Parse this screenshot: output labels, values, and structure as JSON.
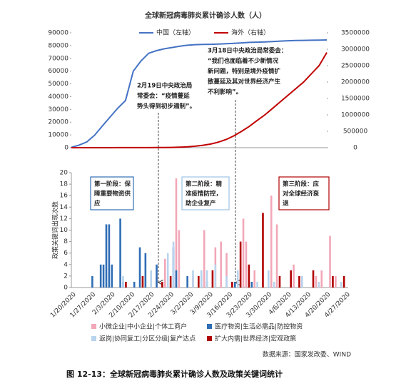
{
  "chart_data": [
    {
      "type": "line",
      "title": "全球新冠病毒肺炎累计确诊人数（人）",
      "categories": [
        null,
        null,
        null,
        null,
        null,
        null,
        null,
        null,
        null,
        null,
        null,
        null,
        null,
        null,
        null,
        null,
        null,
        null,
        null,
        null,
        null,
        null,
        null,
        null,
        null,
        null,
        null,
        null,
        null,
        null,
        null,
        null,
        null,
        null
      ],
      "series": [
        {
          "name": "中国（左轴）",
          "color": "#4472c4",
          "values": [
            300,
            2000,
            4500,
            9700,
            17000,
            24000,
            31000,
            37000,
            60000,
            68000,
            74000,
            76000,
            77500,
            78500,
            79500,
            80300,
            80700,
            80900,
            81000,
            81200,
            81500,
            81800,
            82100,
            82500,
            82700,
            82900,
            83200,
            83500,
            83800,
            84000,
            84100,
            84200,
            84300,
            84400
          ]
        },
        {
          "name": "海外（右轴）",
          "color": "#c00000",
          "axis": "y2",
          "values": [
            0,
            50,
            200,
            500,
            700,
            900,
            1200,
            1500,
            1800,
            2200,
            2700,
            3500,
            5000,
            8000,
            15000,
            25000,
            45000,
            75000,
            110000,
            170000,
            250000,
            360000,
            500000,
            650000,
            830000,
            1000000,
            1200000,
            1400000,
            1600000,
            1800000,
            2000000,
            2250000,
            2500000,
            2900000
          ]
        }
      ],
      "ylim": [
        0,
        90000
      ],
      "yticks": [
        0,
        10000,
        20000,
        30000,
        40000,
        50000,
        60000,
        70000,
        80000,
        90000
      ],
      "y2lim": [
        0,
        3500000
      ],
      "y2ticks": [
        0,
        500000,
        1000000,
        1500000,
        2000000,
        2500000,
        3000000,
        3500000
      ],
      "annotations": [
        {
          "lines": [
            "2月19日中央政治局",
            "常委会：“疫情蔓延",
            "势头得到初步遏制”。"
          ]
        },
        {
          "lines": [
            "3月18日中央政治局常委会：",
            "“我们也面临着不少新情况",
            "新问题，特别是境外疫情扩",
            "散蔓延及其对世界经济产生",
            "不利影响”。"
          ]
        }
      ]
    },
    {
      "type": "bar",
      "ylabel": "政策关键词出现次数",
      "categories": [
        "1/20/2020",
        null,
        null,
        null,
        null,
        null,
        null,
        "1/27/2020",
        null,
        null,
        null,
        null,
        null,
        null,
        "2/3/2020",
        null,
        null,
        null,
        null,
        null,
        null,
        "2/10/2020",
        null,
        null,
        null,
        null,
        null,
        null,
        "2/17/2020",
        null,
        null,
        null,
        null,
        null,
        null,
        "2/24/2020",
        null,
        null,
        null,
        null,
        null,
        null,
        "3/2/2020",
        null,
        null,
        null,
        null,
        null,
        null,
        "3/9/2020",
        null,
        null,
        null,
        null,
        null,
        null,
        "3/16/2020",
        null,
        null,
        null,
        null,
        null,
        null,
        "3/23/2020",
        null,
        null,
        null,
        null,
        null,
        null,
        "3/30/2020",
        null,
        null,
        null,
        null,
        null,
        null,
        "4/6/2020",
        null,
        null,
        null,
        null,
        null,
        null,
        "4/13/2020",
        null,
        null,
        null,
        null,
        null,
        null,
        "4/20/2020",
        null,
        null,
        null,
        null,
        null,
        null,
        "4/27/2020"
      ],
      "series": [
        {
          "name": "小微企业|中小企业|个体工商户",
          "color": "#f2a7b8",
          "values": [
            0,
            0,
            0,
            0,
            0,
            0,
            0,
            0,
            0,
            0,
            0,
            0,
            0,
            0,
            0,
            0,
            0,
            0,
            0,
            0,
            0,
            0,
            0,
            0,
            0,
            0,
            0,
            0,
            0,
            0,
            2,
            0,
            0,
            5,
            0,
            0,
            0,
            19,
            10,
            0,
            0,
            0,
            0,
            2,
            0,
            0,
            0,
            10,
            0,
            0,
            0,
            7,
            0,
            8,
            0,
            6,
            0,
            0,
            0,
            0,
            0,
            12,
            8,
            0,
            0,
            3,
            0,
            0,
            0,
            0,
            0,
            16,
            0,
            11,
            0,
            0,
            0,
            0,
            0,
            4,
            0,
            0,
            1,
            0,
            0,
            0,
            0,
            2,
            0,
            3,
            0,
            0,
            9,
            0,
            2,
            0,
            0,
            0,
            0
          ]
        },
        {
          "name": "医疗物资|生活必需品|防控物资",
          "color": "#2f6db5",
          "values": [
            0,
            0,
            0,
            0,
            0,
            0,
            0,
            2,
            0,
            0,
            4,
            4,
            11,
            11,
            4,
            0,
            0,
            12,
            1,
            0,
            0,
            0,
            1,
            0,
            7,
            0,
            6,
            0,
            0,
            0,
            4,
            0,
            0,
            0,
            0,
            0,
            7,
            3,
            0,
            0,
            0,
            2,
            0,
            0,
            0,
            0,
            2,
            0,
            1,
            0,
            0,
            0,
            0,
            0,
            0,
            0,
            0,
            0,
            1,
            0,
            0,
            0,
            0,
            0,
            1,
            0,
            0,
            0,
            0,
            0,
            0,
            0,
            0,
            0,
            0,
            0,
            0,
            0,
            0,
            0,
            0,
            0,
            0,
            0,
            0,
            0,
            0,
            0,
            0,
            0,
            0,
            0,
            0,
            0,
            0,
            0,
            0,
            0,
            0
          ]
        },
        {
          "name": "返岗|协同复工|分区分级|复产达点",
          "color": "#b8d4ee",
          "values": [
            0,
            0,
            0,
            0,
            0,
            0,
            0,
            0,
            0,
            0,
            0,
            0,
            0,
            0,
            0,
            0,
            0,
            0,
            2,
            0,
            0,
            0,
            0,
            0,
            0,
            0,
            0,
            0,
            3,
            0,
            0,
            0,
            0,
            0,
            6,
            0,
            8,
            0,
            0,
            0,
            0,
            0,
            0,
            3,
            0,
            0,
            3,
            0,
            3,
            0,
            0,
            4,
            0,
            0,
            0,
            2,
            0,
            0,
            0,
            3,
            0,
            0,
            0,
            0,
            0,
            0,
            1,
            0,
            0,
            0,
            3,
            0,
            1,
            0,
            0,
            0,
            0,
            0,
            0,
            0,
            0,
            0,
            2,
            0,
            0,
            0,
            0,
            0,
            1,
            0,
            0,
            0,
            0,
            0,
            0,
            0,
            1,
            0,
            0
          ]
        },
        {
          "name": "扩大内需|世界经济|宏观政策",
          "color": "#b00000",
          "values": [
            0,
            0,
            0,
            0,
            0,
            0,
            0,
            0,
            0,
            0,
            0,
            0,
            0,
            0,
            0,
            0,
            0,
            0,
            0,
            1,
            0,
            0,
            0,
            0,
            0,
            2,
            0,
            0,
            0,
            0,
            0,
            0,
            1,
            0,
            0,
            2,
            0,
            0,
            0,
            0,
            0,
            0,
            0,
            0,
            0,
            2,
            0,
            0,
            0,
            0,
            3,
            0,
            0,
            0,
            0,
            0,
            0,
            1,
            0,
            0,
            8,
            0,
            0,
            4,
            0,
            0,
            0,
            0,
            13,
            0,
            0,
            0,
            0,
            0,
            2,
            0,
            0,
            0,
            3,
            0,
            0,
            2,
            0,
            0,
            0,
            0,
            3,
            0,
            0,
            0,
            0,
            0,
            0,
            2,
            0,
            0,
            0,
            2,
            0
          ]
        }
      ],
      "ylim": [
        0,
        20
      ],
      "yticks": [
        0,
        2,
        4,
        6,
        8,
        10,
        12,
        14,
        16,
        18,
        20
      ],
      "annotations": [
        {
          "lines": [
            "第一阶段：保",
            "障重要物资供",
            "应"
          ],
          "color": "#2f6db5"
        },
        {
          "lines": [
            "第二阶段：精",
            "准疫情防控，",
            "助企业复产"
          ],
          "color": "#9dc3e6"
        },
        {
          "lines": [
            "第三阶段：应",
            "对全球经济衰",
            "退"
          ],
          "color": "#b00000"
        }
      ]
    }
  ],
  "source": "数据来源：国家发改委、WIND",
  "caption": "图 12-13：全球新冠病毒肺炎累计确诊人数及政策关键词统计"
}
